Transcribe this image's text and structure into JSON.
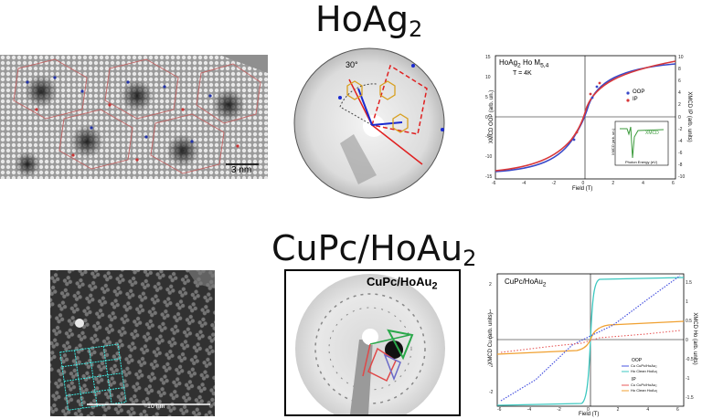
{
  "top": {
    "title_main": "HoAg",
    "title_sub": "2",
    "stm_scale": "3 nm",
    "leed_angle": "30°",
    "xmcd": {
      "sample_label_main": "HoAg",
      "sample_label_sub": "2",
      "sample_label_edge": " Ho M",
      "sample_label_edge_sub": "5,4",
      "temperature": "T = 4K",
      "legend_oop": "OOP",
      "legend_ip": "IP",
      "ylabel_left": "XMCD OOP (arb. un.)",
      "ylabel_right": "XMCD IP (arb. units)",
      "xlabel": "Field (T)",
      "inset_label": "XMCD",
      "inset_xlabel": "Photon Energy (eV)",
      "inset_ylabel": "XMCD (arb. un.)",
      "x_ticks": [
        "-6",
        "-4",
        "-2",
        "0",
        "2",
        "4",
        "6"
      ],
      "y_ticks_left": [
        "15",
        "10",
        "5",
        "0",
        "-5",
        "-10",
        "-15"
      ],
      "y_ticks_right": [
        "10",
        "8",
        "6",
        "4",
        "2",
        "0",
        "-2",
        "-4",
        "-6",
        "-8",
        "-10"
      ]
    }
  },
  "bottom": {
    "title_main": "CuPc/HoAu",
    "title_sub": "2",
    "stm_scale": "10 nm",
    "leed_label_main": "CuPc/HoAu",
    "leed_label_sub": "2",
    "xmcd": {
      "sample_label_main": "CuPc/HoAu",
      "sample_label_sub": "2",
      "ylabel_left": "XMCD Cu (arb. units)",
      "ylabel_right": "XMCD Ho (arb. units)",
      "xlabel": "Field (T)",
      "legend_title_oop": "OOP",
      "legend_oop_1": "Cu CuPc/HoAu₂",
      "legend_oop_2": "Ho Clean HoAu₂",
      "legend_title_ip": "IP",
      "legend_ip_1": "Cu CuPc/HoAu₂",
      "legend_ip_2": "Ho Clean HoAu₂",
      "x_ticks": [
        "-6",
        "-4",
        "-2",
        "0",
        "2",
        "4",
        "6"
      ],
      "y_ticks_left": [
        "2",
        "1",
        "0",
        "-1",
        "-2"
      ],
      "y_ticks_right": [
        "1.5",
        "1",
        "0.5",
        "0",
        "-0.5",
        "-1",
        "-1.5"
      ]
    }
  },
  "colors": {
    "oop": "#3848c8",
    "ip": "#d8383a",
    "cu_oop": "#4a55e0",
    "ho_oop": "#3cc8c0",
    "cu_ip": "#e85a5a",
    "ho_ip": "#f0a030",
    "inset": "#3a9a3a"
  }
}
